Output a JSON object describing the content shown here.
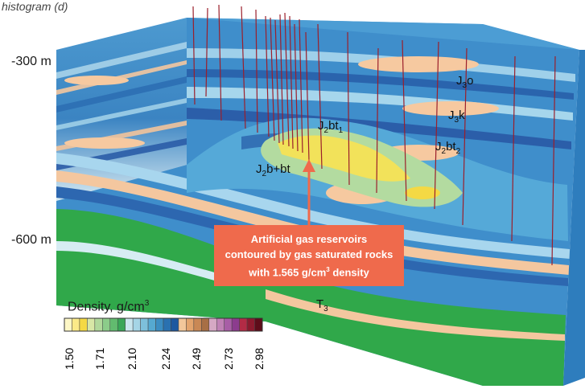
{
  "caption": "histogram (d)",
  "depth_labels": {
    "top": "-300 m",
    "bottom": "-600 m"
  },
  "formations": [
    {
      "id": "J3o",
      "base": "J",
      "sub": "3",
      "rest": "o"
    },
    {
      "id": "J3k",
      "base": "J",
      "sub": "3",
      "rest": "k"
    },
    {
      "id": "J2bt1",
      "base": "J",
      "sub": "2",
      "rest": "bt",
      "sub2": "1"
    },
    {
      "id": "J2bt2",
      "base": "J",
      "sub": "2",
      "rest": "bt",
      "sub2": "2"
    },
    {
      "id": "J2b+bt",
      "base": "J",
      "sub": "2",
      "rest": "b+bt"
    },
    {
      "id": "T3",
      "base": "T",
      "sub": "3",
      "rest": ""
    }
  ],
  "callout": {
    "line1": "Artificial gas reservoirs",
    "line2": "contoured by gas saturated rocks",
    "line3_pre": "with 1.565 g/cm",
    "line3_sup": "3",
    "line3_post": " density"
  },
  "legend": {
    "title": "Density, g/cm",
    "title_sup": "3",
    "ticks": [
      "1.50",
      "1.71",
      "2.10",
      "2.24",
      "2.49",
      "2.73",
      "2.98"
    ],
    "colors": [
      "#fdf7c6",
      "#fbea88",
      "#f4d944",
      "#d8e7a6",
      "#b1d89b",
      "#8ccc8a",
      "#62bb6f",
      "#3aa758",
      "#c9e6ee",
      "#a5d5e6",
      "#7dc0db",
      "#55a9d1",
      "#3b8dc2",
      "#2a71b0",
      "#1d58a0",
      "#f2c79a",
      "#e3a46d",
      "#c98855",
      "#a86f45",
      "#d6a8c4",
      "#c082b5",
      "#a85ea6",
      "#8c3c8e",
      "#b32b45",
      "#8c1a2e",
      "#5e0c1a"
    ]
  },
  "colors": {
    "green": "#30a84a",
    "sand": "#f6c9a0",
    "blue_mid": "#4b9fd2",
    "blue_dark": "#2a5fa8",
    "callout": "#ef6a4c",
    "well": "#9b1f2b"
  }
}
